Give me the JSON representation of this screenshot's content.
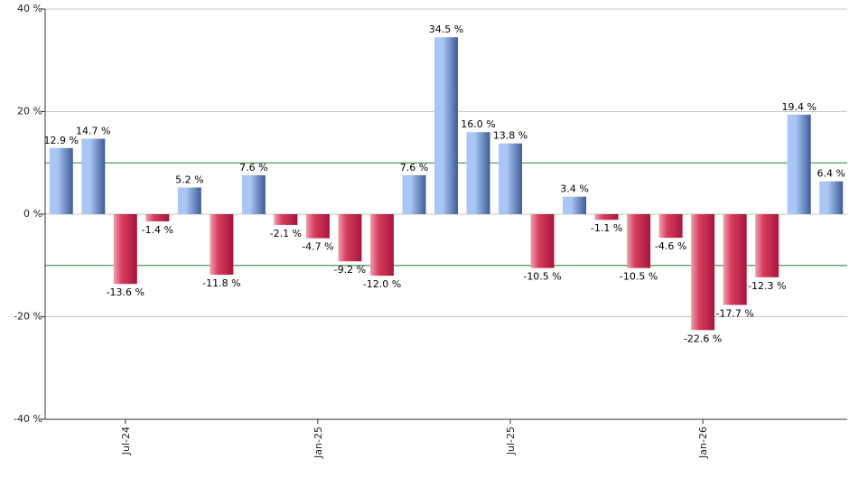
{
  "chart_data": {
    "type": "bar",
    "values": [
      12.9,
      14.7,
      -13.6,
      -1.4,
      5.2,
      -11.8,
      7.6,
      -2.1,
      -4.7,
      -9.2,
      -12.0,
      7.6,
      34.5,
      16.0,
      13.8,
      -10.5,
      3.4,
      -1.1,
      -10.5,
      -4.6,
      -22.6,
      -17.7,
      -12.3,
      19.4,
      6.4
    ],
    "value_labels": [
      "12.9 %",
      "14.7 %",
      "-13.6 %",
      "-1.4 %",
      "5.2 %",
      "-11.8 %",
      "7.6 %",
      "-2.1 %",
      "-4.7 %",
      "-9.2 %",
      "-12.0 %",
      "7.6 %",
      "34.5 %",
      "16.0 %",
      "13.8 %",
      "-10.5 %",
      "3.4 %",
      "-1.1 %",
      "-10.5 %",
      "-4.6 %",
      "-22.6 %",
      "-17.7 %",
      "-12.3 %",
      "19.4 %",
      "6.4 %"
    ],
    "x_ticks": [
      {
        "label": "Jul-24",
        "index": 2
      },
      {
        "label": "Jan-25",
        "index": 8
      },
      {
        "label": "Jul-25",
        "index": 14
      },
      {
        "label": "Jan-26",
        "index": 20
      }
    ],
    "y_ticks": [
      {
        "value": 40,
        "label": "40 %"
      },
      {
        "value": 20,
        "label": "20 %"
      },
      {
        "value": 0,
        "label": "0 %"
      },
      {
        "value": -20,
        "label": "-20 %"
      },
      {
        "value": -40,
        "label": "-40 %"
      }
    ],
    "ylim": [
      -40,
      40
    ],
    "reference_lines": [
      10,
      -10
    ],
    "grid": true,
    "legend": "none",
    "title": "",
    "xlabel": "",
    "ylabel": "",
    "colors": {
      "positive_light": "#a9c6f5",
      "positive_dark": "#3e5c97",
      "negative_light": "#f0a0b0",
      "negative_dark": "#a8163a",
      "gridline": "#c8c8c8",
      "reference_line": "#2e7d32",
      "axis": "#333333"
    }
  }
}
